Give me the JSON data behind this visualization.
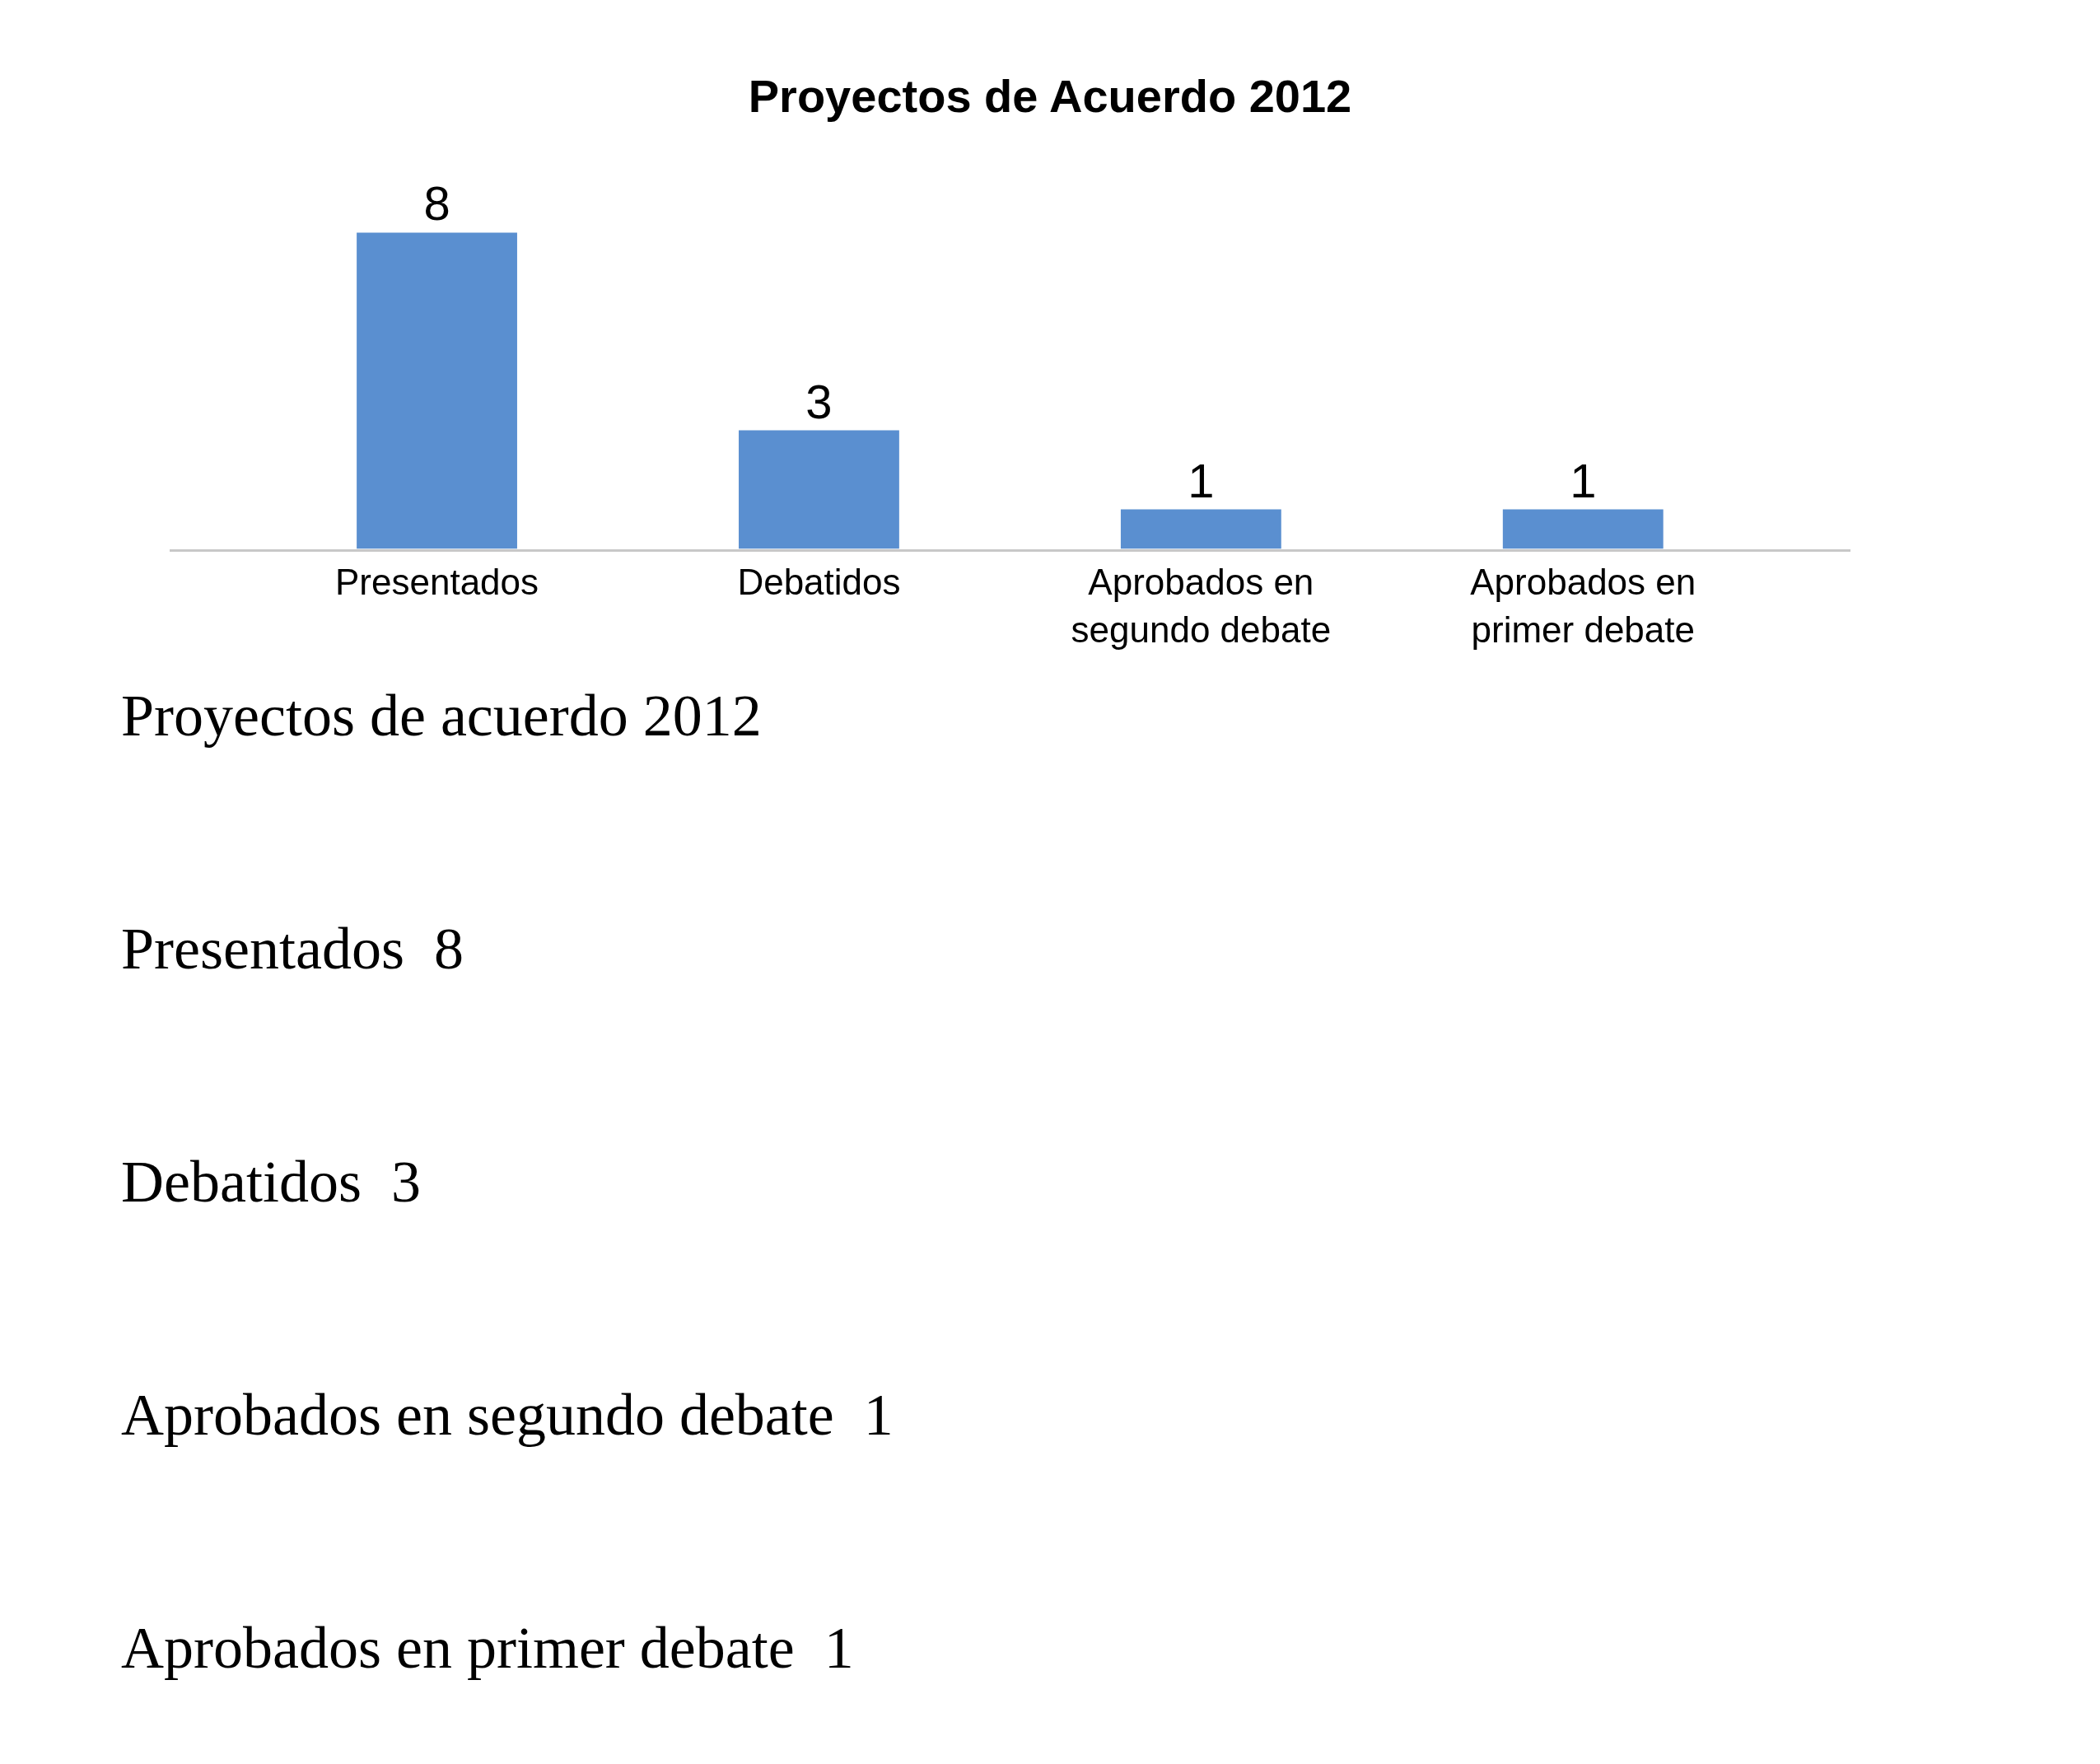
{
  "chart_data": {
    "type": "bar",
    "title": "Proyectos de Acuerdo 2012",
    "categories": [
      "Presentados",
      "Debatidos",
      "Aprobados en segundo debate",
      "Aprobados en primer debate"
    ],
    "values": [
      8,
      3,
      1,
      1
    ],
    "color": "#5a8fd0",
    "data_labels": true,
    "legend": false,
    "annotations": [
      "Proyectos de acuerdo 2012",
      "Presentados  8",
      "Debatidos  3",
      "Aprobados en segundo debate  1",
      "Aprobados en primer debate  1"
    ]
  }
}
